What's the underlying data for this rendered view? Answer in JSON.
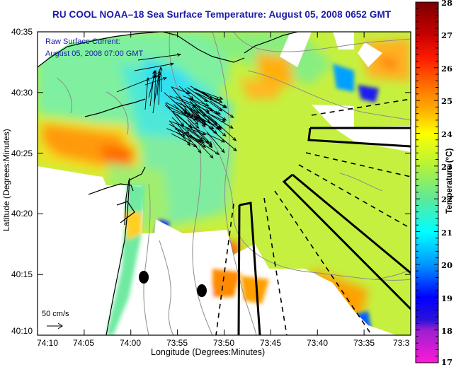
{
  "title": "RU COOL  NOAA–18  Sea Surface Temperature:  August 05, 2008 0652 GMT",
  "overlay": {
    "line1": "Raw Surface Current:",
    "line2": "August 05, 2008 07:00 GMT"
  },
  "scale": {
    "label": "50 cm/s",
    "icon": "arrow-right-icon"
  },
  "axes": {
    "xlabel": "Longitude (Degrees:Minutes)",
    "ylabel": "Latitude (Degrees:Minutes)",
    "xticks": [
      "74:10",
      "74:05",
      "74:00",
      "73:55",
      "73:50",
      "73:45",
      "73:40",
      "73:35",
      "73:3"
    ],
    "yticks": [
      "40:35",
      "40:30",
      "40:25",
      "40:20",
      "40:15",
      "40:10"
    ]
  },
  "colorbar": {
    "label": "Temperature (°C)",
    "ticks": [
      "28",
      "27",
      "26",
      "25",
      "24",
      "23",
      "22",
      "21",
      "20",
      "19",
      "18",
      "17"
    ],
    "range": [
      17,
      28
    ],
    "stops": [
      {
        "value": 28,
        "color": "#7a0000"
      },
      {
        "value": 27,
        "color": "#c80000"
      },
      {
        "value": 26.3,
        "color": "#ff1a00"
      },
      {
        "value": 25.5,
        "color": "#ff6a00"
      },
      {
        "value": 24.7,
        "color": "#ffb000"
      },
      {
        "value": 24.0,
        "color": "#ffff00"
      },
      {
        "value": 23.0,
        "color": "#b4f23a"
      },
      {
        "value": 22.0,
        "color": "#5ee89a"
      },
      {
        "value": 21.0,
        "color": "#00ffff"
      },
      {
        "value": 20.0,
        "color": "#0096ff"
      },
      {
        "value": 19.0,
        "color": "#0000ff"
      },
      {
        "value": 18.3,
        "color": "#2a12d8"
      },
      {
        "value": 18.0,
        "color": "#9b1fd0"
      },
      {
        "value": 17.0,
        "color": "#ff1ad6"
      }
    ]
  },
  "colors": {
    "title": "#1a1aa6",
    "land": "#ffffff",
    "coast": "#000000",
    "bathymetry": "#909090",
    "ocean_base": "#b8f050"
  }
}
